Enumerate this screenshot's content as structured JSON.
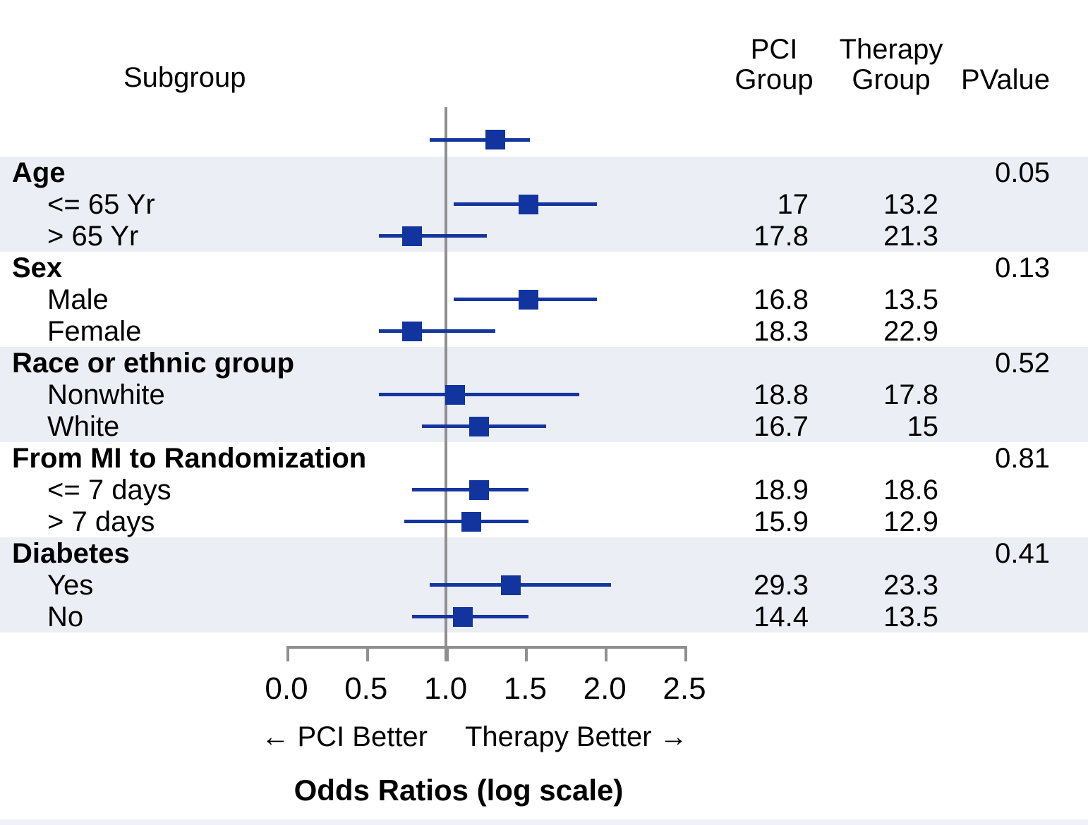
{
  "chart_data": {
    "type": "scatter",
    "subtype": "forest-plot",
    "title": "Odds Ratios (log scale)",
    "columns": {
      "subgroup": "Subgroup",
      "pci": [
        "PCI",
        "Group"
      ],
      "therapy": [
        "Therapy",
        "Group"
      ],
      "pvalue": "PValue"
    },
    "axis": {
      "tick_labels": [
        "0.0",
        "0.5",
        "1.0",
        "1.5",
        "2.0",
        "2.5"
      ],
      "tick_values": [
        0.0,
        0.5,
        1.0,
        1.5,
        2.0,
        2.5
      ],
      "xlim": [
        0.0,
        2.5
      ],
      "reference_line": 1.0,
      "left_direction_label": "← PCI Better",
      "right_direction_label": "Therapy Better →"
    },
    "overall": {
      "or": 1.31,
      "ci_low": 0.9,
      "ci_high": 1.53
    },
    "sections": [
      {
        "label": "Age",
        "pvalue": "0.05",
        "shaded": true,
        "rows": [
          {
            "label": "<= 65 Yr",
            "pci": "17",
            "therapy": "13.2",
            "or": 1.52,
            "ci_low": 1.05,
            "ci_high": 1.95
          },
          {
            "label": "> 65 Yr",
            "pci": "17.8",
            "therapy": "21.3",
            "or": 0.79,
            "ci_low": 0.58,
            "ci_high": 1.26
          }
        ]
      },
      {
        "label": "Sex",
        "pvalue": "0.13",
        "shaded": false,
        "rows": [
          {
            "label": "Male",
            "pci": "16.8",
            "therapy": "13.5",
            "or": 1.52,
            "ci_low": 1.05,
            "ci_high": 1.95
          },
          {
            "label": "Female",
            "pci": "18.3",
            "therapy": "22.9",
            "or": 0.79,
            "ci_low": 0.58,
            "ci_high": 1.31
          }
        ]
      },
      {
        "label": "Race or ethnic group",
        "pvalue": "0.52",
        "shaded": true,
        "rows": [
          {
            "label": "Nonwhite",
            "pci": "18.8",
            "therapy": "17.8",
            "or": 1.06,
            "ci_low": 0.58,
            "ci_high": 1.84
          },
          {
            "label": "White",
            "pci": "16.7",
            "therapy": "15",
            "or": 1.21,
            "ci_low": 0.85,
            "ci_high": 1.63
          }
        ]
      },
      {
        "label": "From MI to Randomization",
        "pvalue": "0.81",
        "shaded": false,
        "rows": [
          {
            "label": "<= 7 days",
            "pci": "18.9",
            "therapy": "18.6",
            "or": 1.21,
            "ci_low": 0.79,
            "ci_high": 1.52
          },
          {
            "label": "> 7 days",
            "pci": "15.9",
            "therapy": "12.9",
            "or": 1.16,
            "ci_low": 0.74,
            "ci_high": 1.52
          }
        ]
      },
      {
        "label": "Diabetes",
        "pvalue": "0.41",
        "shaded": true,
        "rows": [
          {
            "label": "Yes",
            "pci": "29.3",
            "therapy": "23.3",
            "or": 1.41,
            "ci_low": 0.9,
            "ci_high": 2.04
          },
          {
            "label": "No",
            "pci": "14.4",
            "therapy": "13.5",
            "or": 1.11,
            "ci_low": 0.79,
            "ci_high": 1.52
          }
        ]
      }
    ],
    "colors": {
      "marker_blue": "#12349e",
      "ci_blue": "#15359f",
      "band_lavender": "#eceef5",
      "axis_gray": "#8f8f8f"
    }
  }
}
